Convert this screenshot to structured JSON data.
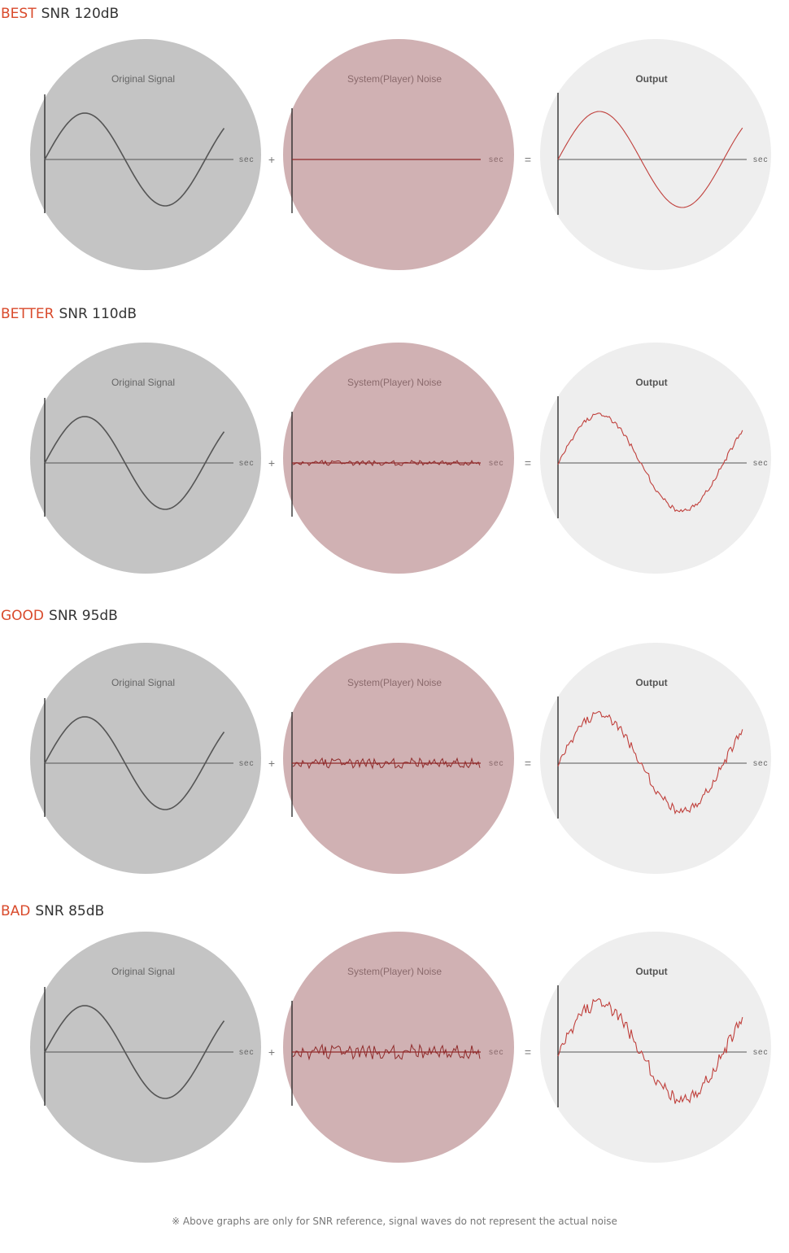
{
  "rows": [
    {
      "grade": "BEST",
      "snr": "SNR 120dB",
      "noise_level": 0
    },
    {
      "grade": "BETTER",
      "snr": "SNR 110dB",
      "noise_level": 0.35
    },
    {
      "grade": "GOOD",
      "snr": "SNR 95dB",
      "noise_level": 0.7
    },
    {
      "grade": "BAD",
      "snr": "SNR 85dB",
      "noise_level": 1
    }
  ],
  "labels": {
    "original": "Original Signal",
    "noise": "System(Player) Noise",
    "output": "Output",
    "axis": "sec",
    "plus": "+",
    "equals": "="
  },
  "colors": {
    "grade": "#d94a2b",
    "original_bg": "#c4c4c4",
    "noise_bg": "#d0b1b3",
    "output_bg": "#eeeeee",
    "original_wave": "#555555",
    "noise_wave": "#8f2a2a",
    "output_wave": "#c0403c"
  },
  "footnote": "※ Above graphs are only for SNR reference, signal waves do not represent the actual noise"
}
